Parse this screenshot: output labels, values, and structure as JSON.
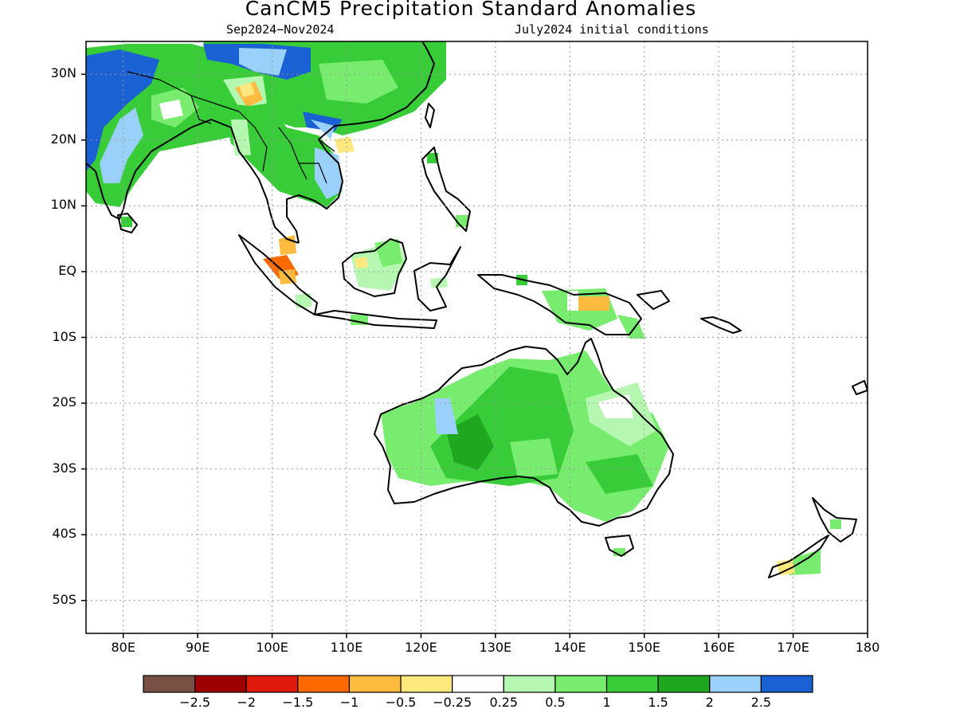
{
  "title": "CanCM5 Precipitation Standard Anomalies",
  "subtitle_left": "Sep2024−Nov2024",
  "subtitle_right": "July2024 initial conditions",
  "lat_labels": [
    "30N",
    "20N",
    "10N",
    "EQ",
    "10S",
    "20S",
    "30S",
    "40S",
    "50S"
  ],
  "lon_labels": [
    "80E",
    "90E",
    "100E",
    "110E",
    "120E",
    "130E",
    "140E",
    "150E",
    "160E",
    "170E",
    "180"
  ],
  "colorbar": {
    "colors": [
      "#7a4f44",
      "#9f0000",
      "#e01a0a",
      "#ff6a00",
      "#ffbb40",
      "#ffe97f",
      "#ffffff",
      "#b5f7b0",
      "#78ec6e",
      "#37cc38",
      "#1fa81f",
      "#9ad1fa",
      "#1a62d4"
    ],
    "labels": [
      "−2.5",
      "−2",
      "−1.5",
      "−1",
      "−0.5",
      "−0.25",
      "0.25",
      "0.5",
      "1",
      "1.5",
      "2",
      "2.5"
    ]
  },
  "map_extent": {
    "lon": [
      75,
      180
    ],
    "lat": [
      -55,
      35
    ]
  }
}
